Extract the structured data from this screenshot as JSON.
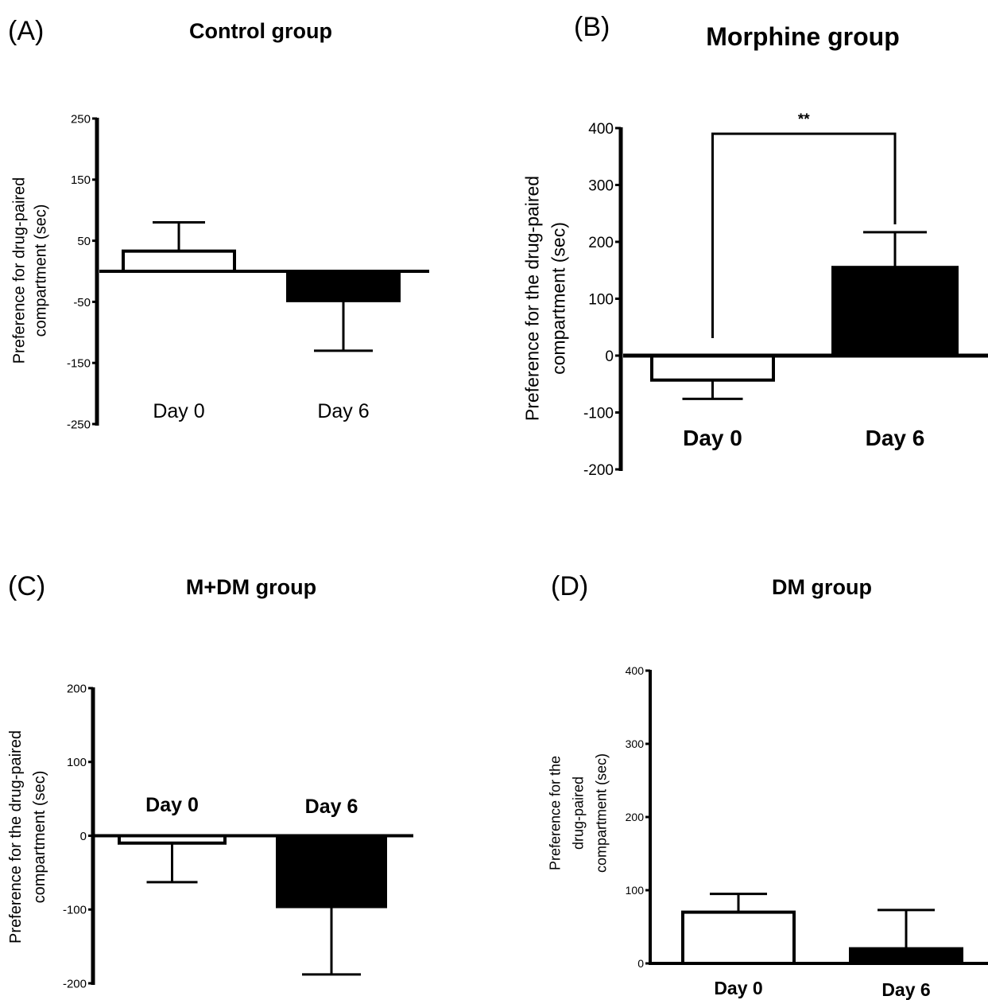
{
  "chart_data": [
    {
      "panel_label": "(A)",
      "title": "Control group",
      "type": "bar",
      "ylabel_lines": [
        "Preference for drug-paired",
        "compartment (sec)"
      ],
      "categories": [
        "Day 0",
        "Day 6"
      ],
      "values": [
        33,
        -48
      ],
      "error": [
        47,
        82
      ],
      "error_direction": [
        "up",
        "down"
      ],
      "bar_fill": [
        "#ffffff",
        "#000000"
      ],
      "ylim": [
        -250,
        250
      ],
      "yticks": [
        -250,
        -150,
        -50,
        50,
        150,
        250
      ],
      "ytick_labels": [
        "-250",
        "-150",
        "-50",
        "50",
        "150",
        "250"
      ],
      "category_label_placement": "below-axis",
      "category_label_bold": false,
      "legend": "none"
    },
    {
      "panel_label": "(B)",
      "title": "Morphine group",
      "type": "bar",
      "ylabel_lines": [
        "Preference for the drug-paired",
        "compartment (sec)"
      ],
      "categories": [
        "Day 0",
        "Day 6"
      ],
      "values": [
        -43,
        155
      ],
      "error": [
        33,
        62
      ],
      "error_direction": [
        "down",
        "up"
      ],
      "bar_fill": [
        "#ffffff",
        "#000000"
      ],
      "ylim": [
        -200,
        400
      ],
      "yticks": [
        -200,
        -100,
        0,
        100,
        200,
        300,
        400
      ],
      "ytick_labels": [
        "-200",
        "-100",
        "0",
        "100",
        "200",
        "300",
        "400"
      ],
      "category_label_placement": "below-axis",
      "category_label_bold": true,
      "significance": {
        "label": "**",
        "between": [
          "Day 0",
          "Day 6"
        ],
        "level": 390
      },
      "legend": "none"
    },
    {
      "panel_label": "(C)",
      "title": "M+DM group",
      "type": "bar",
      "ylabel_lines": [
        "Preference for the drug-paired",
        "compartment (sec)"
      ],
      "categories": [
        "Day 0",
        "Day 6"
      ],
      "values": [
        -10,
        -96
      ],
      "error": [
        53,
        92
      ],
      "error_direction": [
        "down",
        "down"
      ],
      "bar_fill": [
        "#ffffff",
        "#000000"
      ],
      "ylim": [
        -200,
        200
      ],
      "yticks": [
        -200,
        -100,
        0,
        100,
        200
      ],
      "ytick_labels": [
        "-200",
        "-100",
        "0",
        "100",
        "200"
      ],
      "category_label_placement": "above-axis",
      "category_label_bold": true,
      "legend": "none"
    },
    {
      "panel_label": "(D)",
      "title": "DM group",
      "type": "bar",
      "ylabel_lines": [
        "Preference for the",
        "drug-paired",
        "compartment (sec)"
      ],
      "categories": [
        "Day 0",
        "Day 6"
      ],
      "values": [
        70,
        20
      ],
      "error": [
        25,
        53
      ],
      "error_direction": [
        "up",
        "up"
      ],
      "bar_fill": [
        "#ffffff",
        "#000000"
      ],
      "ylim": [
        0,
        400
      ],
      "yticks": [
        0,
        100,
        200,
        300,
        400
      ],
      "ytick_labels": [
        "0",
        "100",
        "200",
        "300",
        "400"
      ],
      "category_label_placement": "below-axis",
      "category_label_bold": true,
      "legend": "none"
    }
  ]
}
